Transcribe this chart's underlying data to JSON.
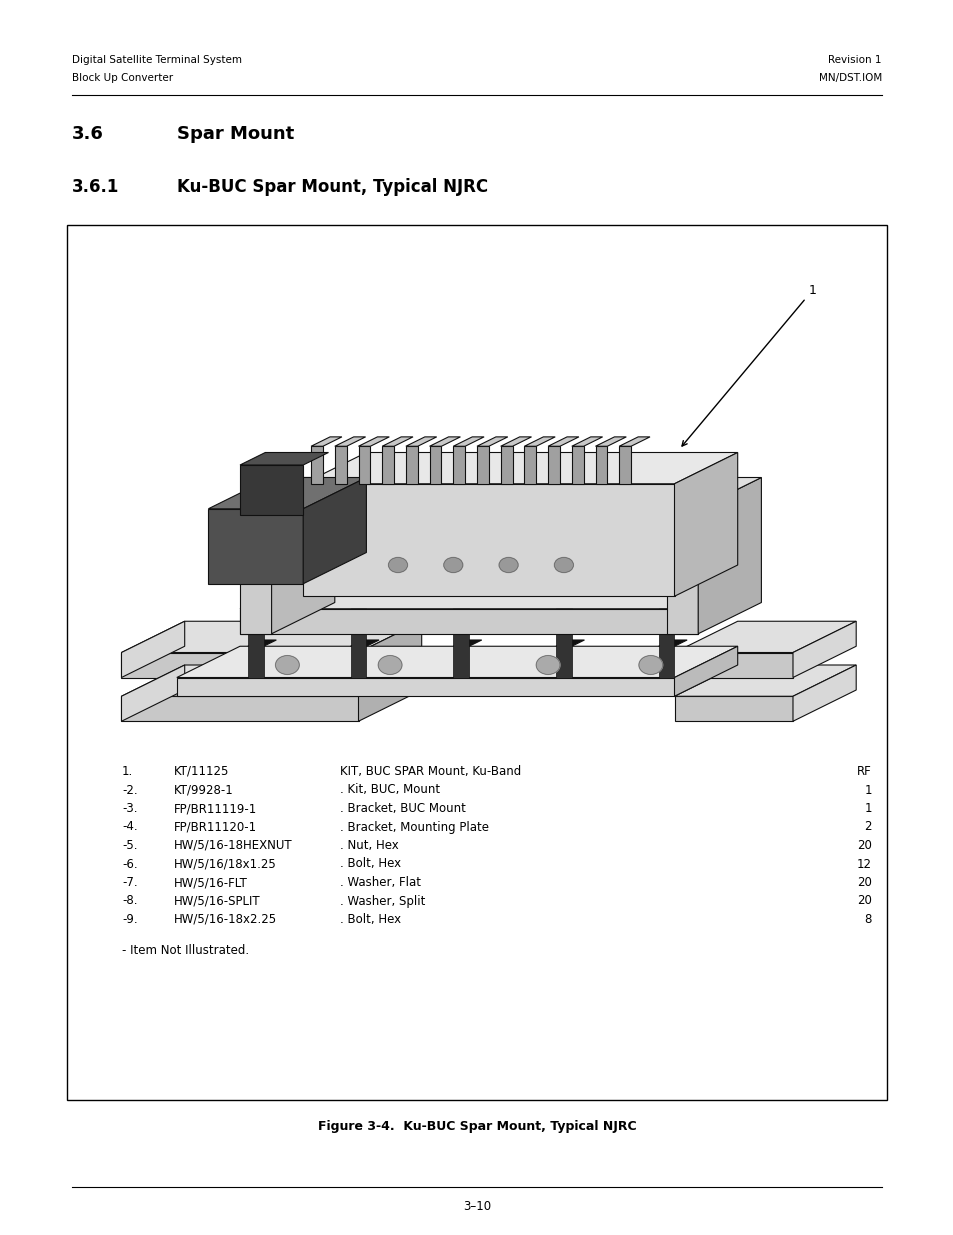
{
  "page_width": 9.54,
  "page_height": 12.35,
  "bg_color": "#ffffff",
  "header_left_line1": "Digital Satellite Terminal System",
  "header_left_line2": "Block Up Converter",
  "header_right_line1": "Revision 1",
  "header_right_line2": "MN/DST.IOM",
  "section_num": "3.6",
  "section_text": "Spar Mount",
  "subsection_num": "3.6.1",
  "subsection_text": "Ku-BUC Spar Mount, Typical NJRC",
  "figure_caption": "Figure 3-4.  Ku-BUC Spar Mount, Typical NJRC",
  "page_number": "3–10",
  "parts_list": [
    {
      "num": "1.",
      "pn": "KT/11125",
      "desc": "KIT, BUC SPAR Mount, Ku-Band",
      "qty": "RF"
    },
    {
      "num": "-2.",
      "pn": "KT/9928-1",
      "desc": ". Kit, BUC, Mount",
      "qty": "1"
    },
    {
      "num": "-3.",
      "pn": "FP/BR11119-1",
      "desc": ". Bracket, BUC Mount",
      "qty": "1"
    },
    {
      "num": "-4.",
      "pn": "FP/BR11120-1",
      "desc": ". Bracket, Mounting Plate",
      "qty": "2"
    },
    {
      "num": "-5.",
      "pn": "HW/5/16-18HEXNUT",
      "desc": ". Nut, Hex",
      "qty": "20"
    },
    {
      "num": "-6.",
      "pn": "HW/5/16/18x1.25",
      "desc": ". Bolt, Hex",
      "qty": "12"
    },
    {
      "num": "-7.",
      "pn": "HW/5/16-FLT",
      "desc": ". Washer, Flat",
      "qty": "20"
    },
    {
      "num": "-8.",
      "pn": "HW/5/16-SPLIT",
      "desc": ". Washer, Split",
      "qty": "20"
    },
    {
      "num": "-9.",
      "pn": "HW/5/16-18x2.25",
      "desc": ". Bolt, Hex",
      "qty": "8"
    }
  ],
  "note": "- Item Not Illustrated.",
  "header_font_size": 7.5,
  "section_font_size": 13,
  "subsection_font_size": 12,
  "body_font_size": 8.5,
  "caption_font_size": 9
}
